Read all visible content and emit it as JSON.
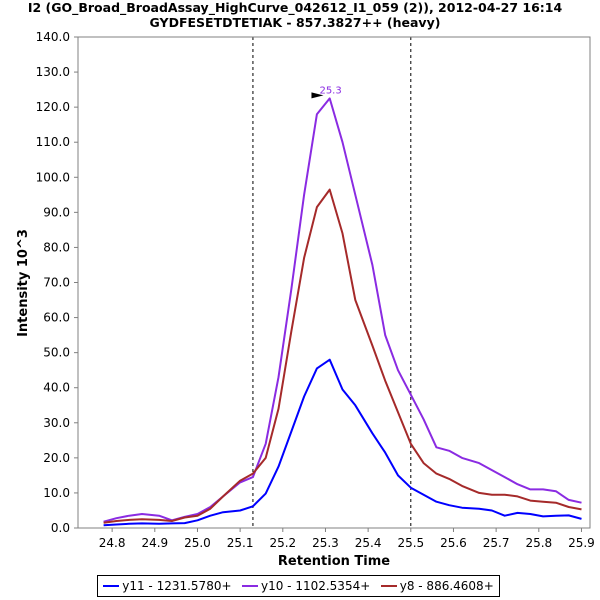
{
  "chart_data": {
    "type": "line",
    "title": "I2 (GO_Broad_BroadAssay_HighCurve_042612_I1_059 (2)), 2012-04-27 16:14",
    "subtitle": "GYDFESETDTETIAK - 857.3827++ (heavy)",
    "xlabel": "Retention Time",
    "ylabel": "Intensity 10^3",
    "xlim": [
      24.72,
      25.92
    ],
    "ylim": [
      0,
      140
    ],
    "x_ticks": [
      "24.8",
      "24.9",
      "25.0",
      "25.1",
      "25.2",
      "25.3",
      "25.4",
      "25.5",
      "25.6",
      "25.7",
      "25.8",
      "25.9"
    ],
    "y_ticks": [
      "0.0",
      "10.0",
      "20.0",
      "30.0",
      "40.0",
      "50.0",
      "60.0",
      "70.0",
      "80.0",
      "90.0",
      "100.0",
      "110.0",
      "120.0",
      "130.0",
      "140.0"
    ],
    "vertical_markers": [
      25.13,
      25.5
    ],
    "annotation": {
      "text": "25.3",
      "x": 25.3,
      "y": 122.5
    },
    "series": [
      {
        "name": "y11 - 1231.5780+",
        "color": "#0000ff",
        "x": [
          24.78,
          24.81,
          24.84,
          24.87,
          24.91,
          24.94,
          24.97,
          25.0,
          25.03,
          25.06,
          25.1,
          25.13,
          25.16,
          25.19,
          25.22,
          25.25,
          25.28,
          25.31,
          25.34,
          25.37,
          25.41,
          25.44,
          25.47,
          25.5,
          25.53,
          25.56,
          25.59,
          25.62,
          25.66,
          25.69,
          25.72,
          25.75,
          25.78,
          25.81,
          25.84,
          25.87,
          25.9
        ],
        "values": [
          0.8,
          1.0,
          1.2,
          1.3,
          1.2,
          1.3,
          1.4,
          2.2,
          3.5,
          4.5,
          5.0,
          6.2,
          9.8,
          17.5,
          27.5,
          37.5,
          45.5,
          48.0,
          39.5,
          35.0,
          27.0,
          21.5,
          15.0,
          11.5,
          9.5,
          7.5,
          6.5,
          5.8,
          5.5,
          5.0,
          3.5,
          4.3,
          4.0,
          3.3,
          3.5,
          3.6,
          2.6
        ]
      },
      {
        "name": "y10 - 1102.5354+",
        "color": "#8a2be2",
        "x": [
          24.78,
          24.81,
          24.84,
          24.87,
          24.91,
          24.94,
          24.97,
          25.0,
          25.03,
          25.06,
          25.1,
          25.13,
          25.16,
          25.19,
          25.22,
          25.25,
          25.28,
          25.31,
          25.34,
          25.37,
          25.41,
          25.44,
          25.47,
          25.5,
          25.53,
          25.56,
          25.59,
          25.62,
          25.66,
          25.69,
          25.72,
          25.75,
          25.78,
          25.81,
          25.84,
          25.87,
          25.9
        ],
        "values": [
          1.8,
          2.8,
          3.5,
          4.0,
          3.5,
          2.2,
          3.2,
          4.0,
          6.0,
          9.0,
          13.0,
          14.5,
          24.0,
          43.0,
          68.0,
          95.0,
          118.0,
          122.5,
          110.0,
          95.0,
          75.0,
          55.0,
          45.0,
          38.0,
          31.0,
          23.0,
          22.0,
          20.0,
          18.5,
          16.5,
          14.5,
          12.5,
          11.0,
          11.0,
          10.5,
          8.0,
          7.2
        ]
      },
      {
        "name": "y8 - 886.4608+",
        "color": "#a52a2a",
        "x": [
          24.78,
          24.81,
          24.84,
          24.87,
          24.91,
          24.94,
          24.97,
          25.0,
          25.03,
          25.06,
          25.1,
          25.13,
          25.16,
          25.19,
          25.22,
          25.25,
          25.28,
          25.31,
          25.34,
          25.37,
          25.41,
          25.44,
          25.47,
          25.5,
          25.53,
          25.56,
          25.59,
          25.62,
          25.66,
          25.69,
          25.72,
          25.75,
          25.78,
          25.81,
          25.84,
          25.87,
          25.9
        ],
        "values": [
          1.5,
          2.0,
          2.3,
          2.5,
          2.3,
          2.0,
          3.0,
          3.5,
          5.5,
          9.0,
          13.5,
          15.5,
          20.0,
          34.0,
          56.0,
          77.0,
          91.5,
          96.5,
          84.0,
          65.0,
          52.0,
          42.0,
          33.0,
          24.0,
          18.5,
          15.5,
          14.0,
          12.0,
          10.0,
          9.5,
          9.5,
          9.0,
          7.8,
          7.5,
          7.2,
          6.0,
          5.3
        ]
      }
    ]
  }
}
